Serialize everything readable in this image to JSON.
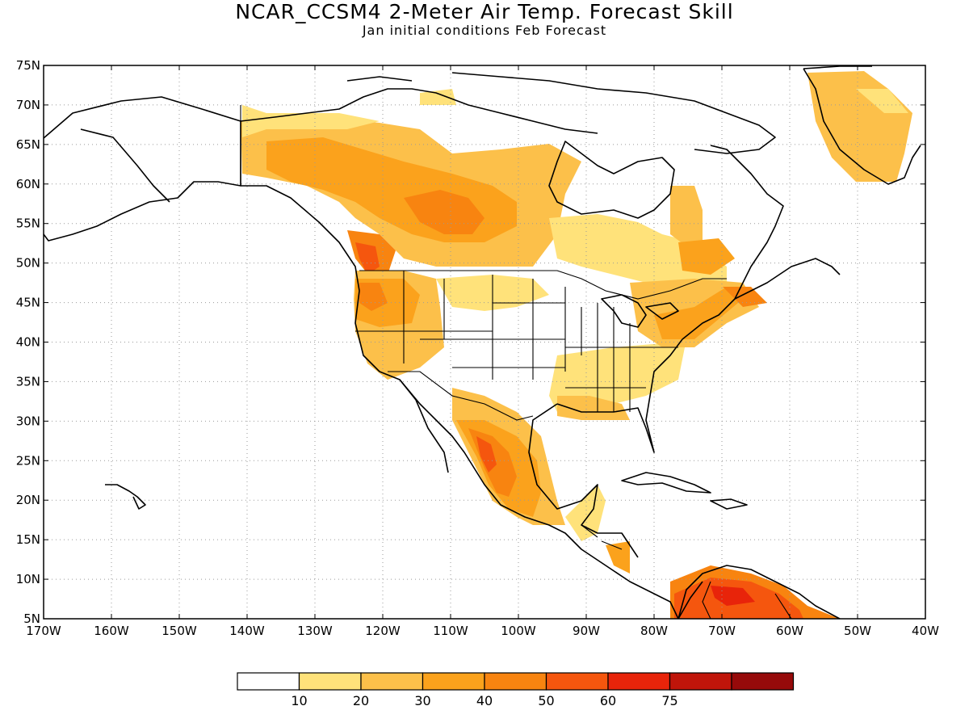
{
  "title": "NCAR_CCSM4 2-Meter Air Temp. Forecast Skill",
  "subtitle": "Jan initial conditions  Feb Forecast",
  "map": {
    "lon_range": [
      -170,
      -40
    ],
    "lat_range": [
      5,
      75
    ],
    "lat_ticks": [
      "75N",
      "70N",
      "65N",
      "60N",
      "55N",
      "50N",
      "45N",
      "40N",
      "35N",
      "30N",
      "25N",
      "20N",
      "15N",
      "10N",
      "5N"
    ],
    "lon_ticks": [
      "170W",
      "160W",
      "150W",
      "140W",
      "130W",
      "120W",
      "110W",
      "100W",
      "90W",
      "80W",
      "70W",
      "60W",
      "50W",
      "40W"
    ],
    "gridlines": "dotted",
    "basemap": "North America coastlines, US state and Canada/Mexico borders",
    "skill_regions": [
      {
        "region": "Northwest Canada / Yukon",
        "level": "20-30"
      },
      {
        "region": "Central Canada / Manitoba",
        "level": "30-40"
      },
      {
        "region": "British Columbia coast / Pacific NW",
        "level": "40-50"
      },
      {
        "region": "Western US (OR, ID, NV)",
        "level": "30-40"
      },
      {
        "region": "Southwest Mexico / Sierra Madre",
        "level": "40-50"
      },
      {
        "region": "Southeast US (Gulf states)",
        "level": "10-20"
      },
      {
        "region": "Northeast US / New England",
        "level": "30-40"
      },
      {
        "region": "Greenland south",
        "level": "20-30"
      },
      {
        "region": "Northern South America (Venezuela/Colombia)",
        "level": "50-60"
      },
      {
        "region": "Central Plains US",
        "level": "<10"
      }
    ]
  },
  "colorbar": {
    "labels": [
      "10",
      "20",
      "30",
      "40",
      "50",
      "60",
      "75"
    ],
    "colors": [
      "#ffffff",
      "#ffe27a",
      "#fcc04a",
      "#fba21c",
      "#f88410",
      "#f5560e",
      "#e8240a",
      "#c0150a",
      "#960a0a"
    ]
  }
}
